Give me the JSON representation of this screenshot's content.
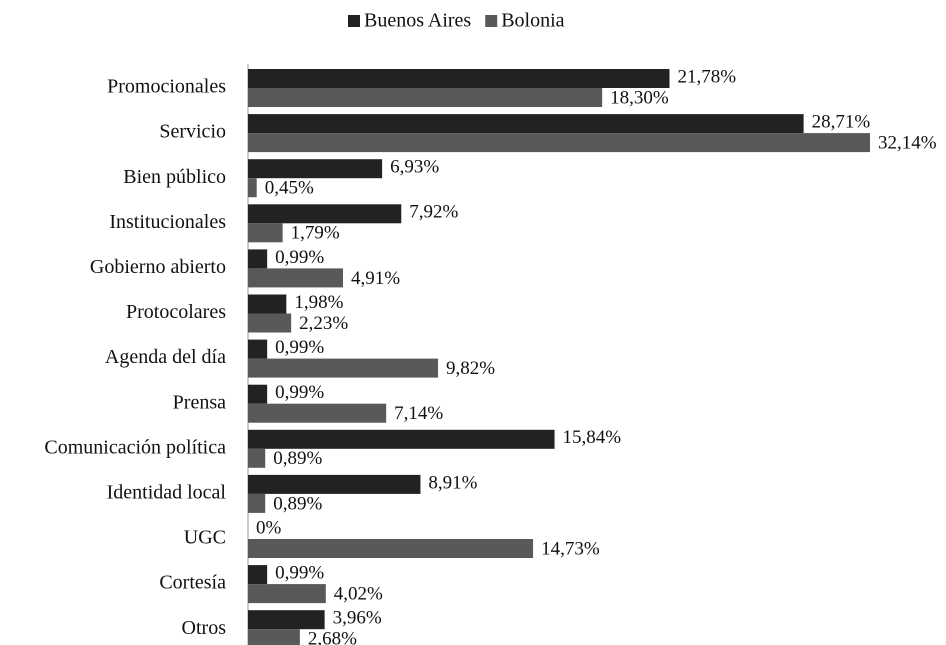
{
  "chart_data": {
    "type": "bar",
    "orientation": "horizontal",
    "categories": [
      "Promocionales",
      "Servicio",
      "Bien público",
      "Institucionales",
      "Gobierno abierto",
      "Protocolares",
      "Agenda del día",
      "Prensa",
      "Comunicación política",
      "Identidad local",
      "UGC",
      "Cortesía",
      "Otros"
    ],
    "series": [
      {
        "name": "Buenos Aires",
        "color": "#222222",
        "values": [
          21.78,
          28.71,
          6.93,
          7.92,
          0.99,
          1.98,
          0.99,
          0.99,
          15.84,
          8.91,
          0,
          0.99,
          3.96
        ],
        "value_labels": [
          "21,78%",
          "28,71%",
          "6,93%",
          "7,92%",
          "0,99%",
          "1,98%",
          "0,99%",
          "0,99%",
          "15,84%",
          "8,91%",
          "0%",
          "0,99%",
          "3,96%"
        ]
      },
      {
        "name": "Bolonia",
        "color": "#595959",
        "values": [
          18.3,
          32.14,
          0.45,
          1.79,
          4.91,
          2.23,
          9.82,
          7.14,
          0.89,
          0.89,
          14.73,
          4.02,
          2.68
        ],
        "value_labels": [
          "18,30%",
          "32,14%",
          "0,45%",
          "1,79%",
          "4,91%",
          "2,23%",
          "9,82%",
          "7,14%",
          "0,89%",
          "0,89%",
          "14,73%",
          "4,02%",
          "2,68%"
        ]
      }
    ],
    "legend": "top"
  }
}
